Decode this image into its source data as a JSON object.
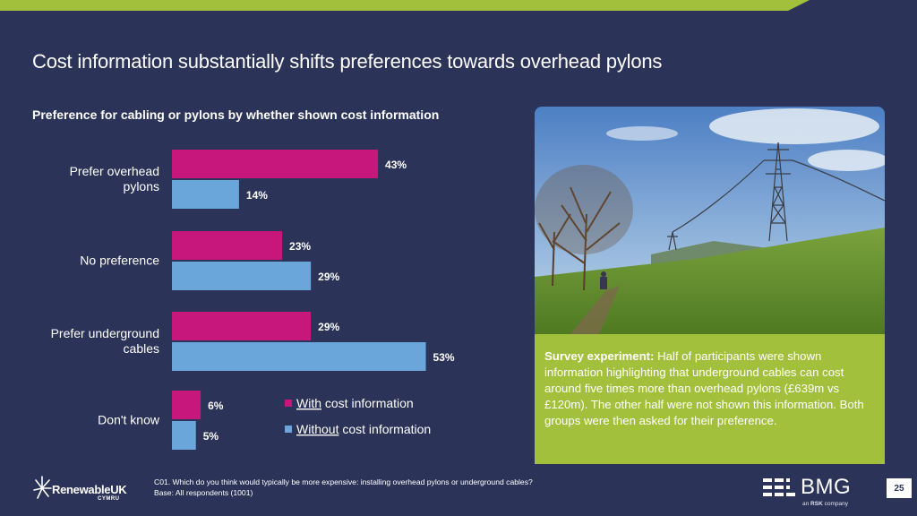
{
  "slide": {
    "title": "Cost information substantially shifts preferences towards overhead pylons",
    "page_number": "25"
  },
  "colors": {
    "background": "#2b3358",
    "with_cost": "#c7177c",
    "without_cost": "#6aa6d9",
    "accent_green": "#a2c03b"
  },
  "chart_data": {
    "type": "bar",
    "orientation": "horizontal",
    "title": "Preference for cabling or pylons by whether shown cost information",
    "categories": [
      [
        "Prefer overhead",
        "pylons"
      ],
      [
        "No preference"
      ],
      [
        "Prefer underground",
        "cables"
      ],
      [
        "Don't know"
      ]
    ],
    "series": [
      {
        "name": "With cost information",
        "name_underlined": "With",
        "name_rest": " cost information",
        "color": "#c7177c",
        "values": [
          43,
          23,
          29,
          6
        ]
      },
      {
        "name": "Without cost information",
        "name_underlined": "Without",
        "name_rest": " cost information",
        "color": "#6aa6d9",
        "values": [
          14,
          29,
          53,
          5
        ]
      }
    ],
    "value_suffix": "%",
    "xlim": [
      0,
      100
    ],
    "grid": false,
    "legend_placement": "bottom-right"
  },
  "photo": {
    "icon": "pylon-field-photo"
  },
  "callout": {
    "lead": "Survey experiment:",
    "text": " Half of participants were shown information highlighting that underground cables can cost around five times more than overhead pylons (£639m vs £120m). The other half were not shown this information. Both groups were then asked for their preference."
  },
  "footnote": {
    "question": "C01. Which do you think would typically be more expensive: installing overhead pylons or underground cables?",
    "base": "Base: All respondents (1001)"
  },
  "logos": {
    "renewable_main": "RenewableUK",
    "renewable_sub": "CYMRU",
    "bmg_main": "BMG",
    "bmg_sub_prefix": "an ",
    "bmg_sub_bold": "RSK",
    "bmg_sub_suffix": " company"
  }
}
